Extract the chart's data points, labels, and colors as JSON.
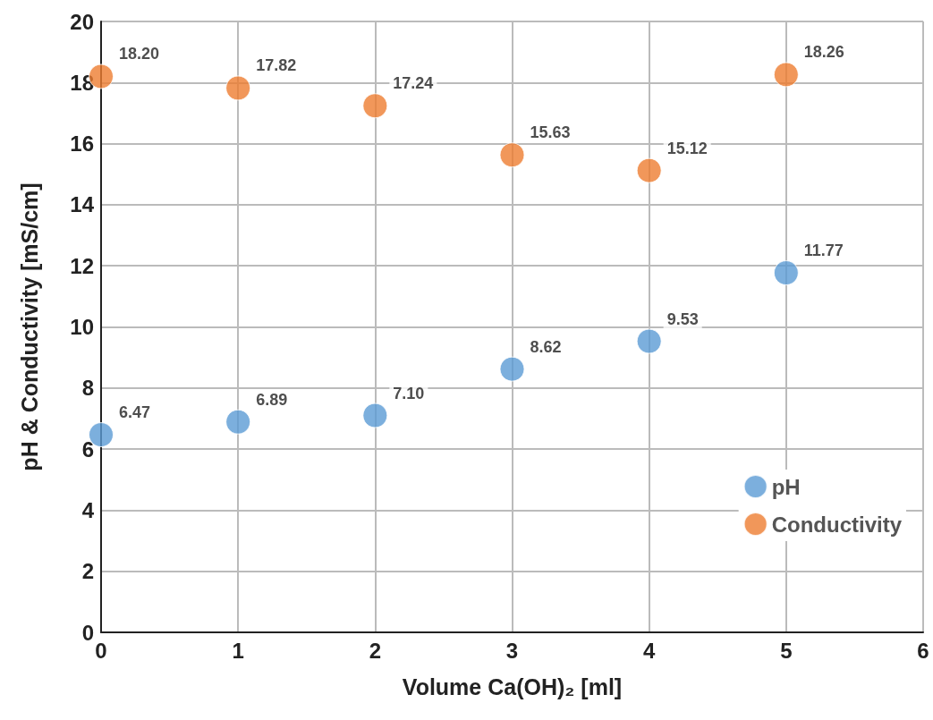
{
  "chart_data": {
    "type": "scatter",
    "xlabel": "Volume Ca(OH)₂ [ml]",
    "ylabel": "pH & Conductivity [mS/cm]",
    "x": [
      0,
      1,
      2,
      3,
      4,
      5
    ],
    "series": [
      {
        "name": "pH",
        "color": "#5b9bd5",
        "values": [
          6.47,
          6.89,
          7.1,
          8.62,
          9.53,
          11.77
        ],
        "value_labels": [
          "6.47",
          "6.89",
          "7.10",
          "8.62",
          "9.53",
          "11.77"
        ]
      },
      {
        "name": "Conductivity",
        "color": "#ed7d31",
        "values": [
          18.2,
          17.82,
          17.24,
          15.63,
          15.12,
          18.26
        ],
        "value_labels": [
          "18.20",
          "17.82",
          "17.24",
          "15.63",
          "15.12",
          "18.26"
        ]
      }
    ],
    "xlim": [
      0,
      6
    ],
    "xticks": [
      0,
      1,
      2,
      3,
      4,
      5,
      6
    ],
    "ylim": [
      0,
      20
    ],
    "yticks": [
      0,
      2,
      4,
      6,
      8,
      10,
      12,
      14,
      16,
      18,
      20
    ],
    "grid": true,
    "legend": "right",
    "marker": "circle"
  }
}
